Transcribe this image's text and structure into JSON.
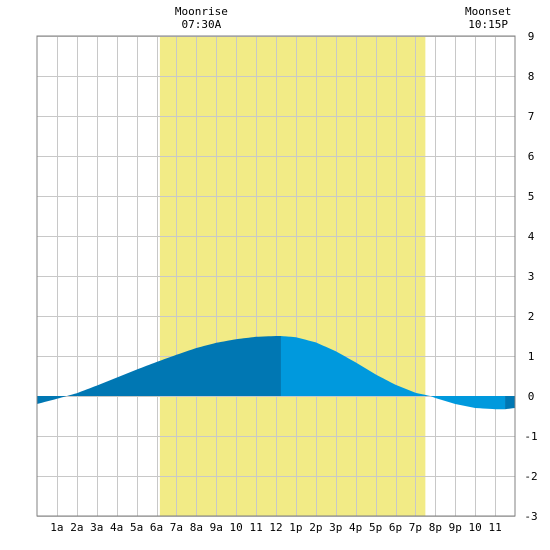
{
  "chart_data": {
    "type": "area",
    "x_unit": "hour",
    "xlim": [
      0,
      24
    ],
    "ylim": [
      -3,
      9
    ],
    "x_ticks": [
      {
        "hour": 1,
        "label": "1a"
      },
      {
        "hour": 2,
        "label": "2a"
      },
      {
        "hour": 3,
        "label": "3a"
      },
      {
        "hour": 4,
        "label": "4a"
      },
      {
        "hour": 5,
        "label": "5a"
      },
      {
        "hour": 6,
        "label": "6a"
      },
      {
        "hour": 7,
        "label": "7a"
      },
      {
        "hour": 8,
        "label": "8a"
      },
      {
        "hour": 9,
        "label": "9a"
      },
      {
        "hour": 10,
        "label": "10"
      },
      {
        "hour": 11,
        "label": "11"
      },
      {
        "hour": 12,
        "label": "12"
      },
      {
        "hour": 13,
        "label": "1p"
      },
      {
        "hour": 14,
        "label": "2p"
      },
      {
        "hour": 15,
        "label": "3p"
      },
      {
        "hour": 16,
        "label": "4p"
      },
      {
        "hour": 17,
        "label": "5p"
      },
      {
        "hour": 18,
        "label": "6p"
      },
      {
        "hour": 19,
        "label": "7p"
      },
      {
        "hour": 20,
        "label": "8p"
      },
      {
        "hour": 21,
        "label": "9p"
      },
      {
        "hour": 22,
        "label": "10"
      },
      {
        "hour": 23,
        "label": "11"
      }
    ],
    "y_ticks": [
      -3,
      -2,
      -1,
      0,
      1,
      2,
      3,
      4,
      5,
      6,
      7,
      8,
      9
    ],
    "moon": {
      "rise_hour": 7.5,
      "set_hour": 22.25,
      "rise_title": "Moonrise",
      "rise_time": "07:30A",
      "set_title": "Moonset",
      "set_time": "10:15P"
    },
    "daylight": {
      "start_hour": 6.17,
      "end_hour": 19.5
    },
    "tide": {
      "x": [
        0,
        1,
        1.5,
        2,
        3,
        4,
        5,
        6,
        7,
        8,
        9,
        10,
        11,
        12,
        12.25,
        13,
        14,
        15,
        16,
        17,
        18,
        19,
        19.75,
        20,
        21,
        22,
        23,
        23.5,
        24
      ],
      "y": [
        -0.2,
        -0.07,
        0,
        0.07,
        0.26,
        0.46,
        0.66,
        0.85,
        1.03,
        1.2,
        1.33,
        1.42,
        1.48,
        1.5,
        1.5,
        1.47,
        1.34,
        1.12,
        0.84,
        0.54,
        0.28,
        0.08,
        0,
        -0.05,
        -0.2,
        -0.3,
        -0.33,
        -0.33,
        -0.3
      ]
    },
    "grid": true,
    "colors": {
      "daylight": "#f2eb86",
      "tide_day": "#0099dd",
      "tide_night": "#0077b3",
      "grid": "#c8c8c8",
      "frame": "#808080"
    }
  }
}
